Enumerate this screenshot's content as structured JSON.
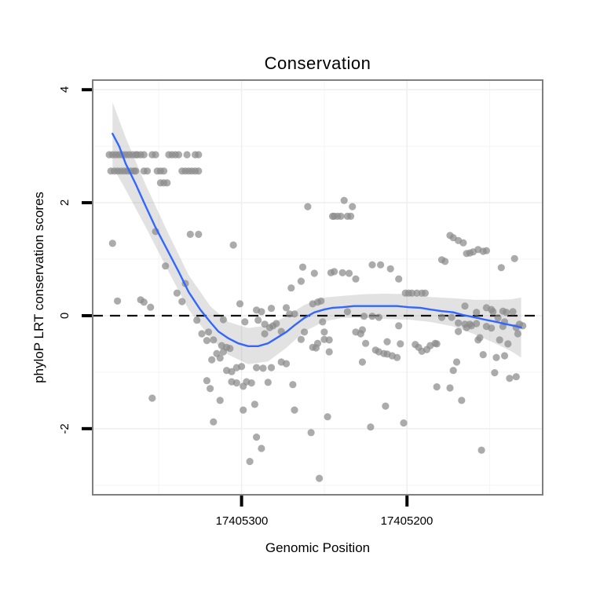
{
  "styles": {
    "point_color": "#8a8a8a",
    "point_opacity": 0.72,
    "smooth_color": "#3366FF",
    "band_color": "#9e9e9e",
    "band_opacity": 0.3,
    "ref_line_color": "#111111",
    "grid_major_color": "#eeeeee",
    "grid_minor_color": "#f6f6f6",
    "panel_border_color": "#7f7f7f",
    "tick_color": "#000000"
  },
  "chart_data": {
    "type": "scatter",
    "title": "Conservation",
    "xlabel": "Genomic Position",
    "ylabel": "phyloP LRT conservation scores",
    "x_reversed": true,
    "xlim": [
      17405390,
      17405118
    ],
    "ylim": [
      -3.17,
      4.17
    ],
    "grid": true,
    "legend_position": "none",
    "reference_line_y": 0,
    "x_ticks": [
      {
        "value": 17405300,
        "label": "17405300"
      },
      {
        "value": 17405200,
        "label": "17405200"
      }
    ],
    "x_minor_ticks": [
      17405350,
      17405250,
      17405150
    ],
    "y_ticks": [
      {
        "value": 4,
        "label": "4"
      },
      {
        "value": 2,
        "label": "2"
      },
      {
        "value": 0,
        "label": "0"
      },
      {
        "value": -2,
        "label": "-2"
      }
    ],
    "y_minor_ticks": [
      3,
      1,
      -1,
      -3
    ],
    "points": [
      [
        17405380,
        2.85
      ],
      [
        17405378,
        2.85
      ],
      [
        17405376,
        2.85
      ],
      [
        17405374,
        2.85
      ],
      [
        17405372,
        2.85
      ],
      [
        17405370,
        2.85
      ],
      [
        17405368,
        2.85
      ],
      [
        17405366,
        2.85
      ],
      [
        17405364,
        2.85
      ],
      [
        17405363,
        2.85
      ],
      [
        17405361,
        2.85
      ],
      [
        17405359,
        2.85
      ],
      [
        17405354,
        2.85
      ],
      [
        17405352,
        2.85
      ],
      [
        17405344,
        2.85
      ],
      [
        17405342,
        2.85
      ],
      [
        17405340,
        2.85
      ],
      [
        17405338,
        2.85
      ],
      [
        17405333,
        2.85
      ],
      [
        17405328,
        2.85
      ],
      [
        17405326,
        2.85
      ],
      [
        17405379,
        2.56
      ],
      [
        17405377,
        2.56
      ],
      [
        17405375,
        2.56
      ],
      [
        17405373,
        2.56
      ],
      [
        17405371,
        2.56
      ],
      [
        17405369,
        2.56
      ],
      [
        17405367,
        2.56
      ],
      [
        17405365,
        2.56
      ],
      [
        17405364,
        2.56
      ],
      [
        17405359,
        2.56
      ],
      [
        17405357,
        2.56
      ],
      [
        17405351,
        2.56
      ],
      [
        17405349,
        2.56
      ],
      [
        17405347,
        2.56
      ],
      [
        17405336,
        2.56
      ],
      [
        17405334,
        2.56
      ],
      [
        17405332,
        2.56
      ],
      [
        17405330,
        2.56
      ],
      [
        17405328,
        2.56
      ],
      [
        17405326,
        2.56
      ],
      [
        17405349,
        2.35
      ],
      [
        17405347,
        2.35
      ],
      [
        17405345,
        2.35
      ],
      [
        17405378,
        1.28
      ],
      [
        17405352,
        1.49
      ],
      [
        17405331,
        1.44
      ],
      [
        17405326,
        1.44
      ],
      [
        17405305,
        1.25
      ],
      [
        17405346,
        0.88
      ],
      [
        17405334,
        0.57
      ],
      [
        17405339,
        0.4
      ],
      [
        17405336,
        0.25
      ],
      [
        17405375,
        0.26
      ],
      [
        17405361,
        0.28
      ],
      [
        17405359,
        0.24
      ],
      [
        17405355,
        0.15
      ],
      [
        17405260,
        1.93
      ],
      [
        17405238,
        2.04
      ],
      [
        17405233,
        1.93
      ],
      [
        17405245,
        1.76
      ],
      [
        17405244,
        1.76
      ],
      [
        17405242,
        1.76
      ],
      [
        17405240,
        1.76
      ],
      [
        17405236,
        1.76
      ],
      [
        17405234,
        1.76
      ],
      [
        17405263,
        0.86
      ],
      [
        17405256,
        0.75
      ],
      [
        17405264,
        0.61
      ],
      [
        17405270,
        0.49
      ],
      [
        17405246,
        0.76
      ],
      [
        17405244,
        0.78
      ],
      [
        17405239,
        0.76
      ],
      [
        17405235,
        0.75
      ],
      [
        17405231,
        0.65
      ],
      [
        17405221,
        0.9
      ],
      [
        17405216,
        0.9
      ],
      [
        17405210,
        0.83
      ],
      [
        17405205,
        0.65
      ],
      [
        17405179,
        0.99
      ],
      [
        17405177,
        0.96
      ],
      [
        17405201,
        0.4
      ],
      [
        17405199,
        0.4
      ],
      [
        17405197,
        0.4
      ],
      [
        17405194,
        0.4
      ],
      [
        17405191,
        0.4
      ],
      [
        17405189,
        0.4
      ],
      [
        17405174,
        1.42
      ],
      [
        17405172,
        1.38
      ],
      [
        17405169,
        1.33
      ],
      [
        17405166,
        1.29
      ],
      [
        17405164,
        1.1
      ],
      [
        17405162,
        1.11
      ],
      [
        17405160,
        1.13
      ],
      [
        17405157,
        1.17
      ],
      [
        17405154,
        1.14
      ],
      [
        17405152,
        1.15
      ],
      [
        17405135,
        1.01
      ],
      [
        17405143,
        0.85
      ],
      [
        17405165,
        0.17
      ],
      [
        17405327,
        -0.08
      ],
      [
        17405311,
        -0.07
      ],
      [
        17405301,
        0.21
      ],
      [
        17405298,
        -0.11
      ],
      [
        17405324,
        -0.32
      ],
      [
        17405320,
        -0.29
      ],
      [
        17405321,
        -0.44
      ],
      [
        17405317,
        -0.43
      ],
      [
        17405312,
        -0.53
      ],
      [
        17405309,
        -0.56
      ],
      [
        17405307,
        -0.58
      ],
      [
        17405315,
        -0.67
      ],
      [
        17405311,
        -0.64
      ],
      [
        17405318,
        -0.78
      ],
      [
        17405313,
        -0.75
      ],
      [
        17405309,
        -0.97
      ],
      [
        17405306,
        -0.99
      ],
      [
        17405303,
        -0.92
      ],
      [
        17405300,
        -0.9
      ],
      [
        17405321,
        -1.15
      ],
      [
        17405319,
        -1.29
      ],
      [
        17405313,
        -1.5
      ],
      [
        17405306,
        -1.17
      ],
      [
        17405303,
        -1.19
      ],
      [
        17405299,
        -1.25
      ],
      [
        17405297,
        -1.17
      ],
      [
        17405294,
        -1.19
      ],
      [
        17405299,
        -1.67
      ],
      [
        17405292,
        -1.57
      ],
      [
        17405317,
        -1.88
      ],
      [
        17405354,
        -1.46
      ],
      [
        17405295,
        -2.58
      ],
      [
        17405291,
        -2.15
      ],
      [
        17405288,
        -2.35
      ],
      [
        17405291,
        0.1
      ],
      [
        17405288,
        0.07
      ],
      [
        17405290,
        -0.08
      ],
      [
        17405286,
        -0.15
      ],
      [
        17405283,
        -0.21
      ],
      [
        17405281,
        -0.18
      ],
      [
        17405279,
        -0.14
      ],
      [
        17405282,
        0.13
      ],
      [
        17405273,
        0.14
      ],
      [
        17405286,
        -0.32
      ],
      [
        17405276,
        -0.28
      ],
      [
        17405271,
        0.03
      ],
      [
        17405268,
        0.03
      ],
      [
        17405264,
        -0.42
      ],
      [
        17405262,
        -0.29
      ],
      [
        17405257,
        -0.56
      ],
      [
        17405255,
        -0.57
      ],
      [
        17405254,
        -0.49
      ],
      [
        17405251,
        -0.11
      ],
      [
        17405250,
        -0.29
      ],
      [
        17405250,
        -0.42
      ],
      [
        17405247,
        -0.43
      ],
      [
        17405247,
        -0.64
      ],
      [
        17405257,
        0.21
      ],
      [
        17405254,
        0.24
      ],
      [
        17405252,
        0.26
      ],
      [
        17405291,
        -0.92
      ],
      [
        17405287,
        -0.93
      ],
      [
        17405282,
        -0.92
      ],
      [
        17405284,
        -1.18
      ],
      [
        17405276,
        -0.82
      ],
      [
        17405273,
        -0.85
      ],
      [
        17405269,
        -1.22
      ],
      [
        17405268,
        -1.67
      ],
      [
        17405258,
        -2.07
      ],
      [
        17405253,
        -2.88
      ],
      [
        17405248,
        -1.79
      ],
      [
        17405236,
        0.07
      ],
      [
        17405226,
        -0.01
      ],
      [
        17405221,
        -0.01
      ],
      [
        17405217,
        -0.03
      ],
      [
        17405231,
        -0.29
      ],
      [
        17405228,
        -0.32
      ],
      [
        17405227,
        -0.25
      ],
      [
        17405225,
        -0.49
      ],
      [
        17405219,
        -0.61
      ],
      [
        17405217,
        -0.64
      ],
      [
        17405214,
        -0.67
      ],
      [
        17405212,
        -0.68
      ],
      [
        17405209,
        -0.71
      ],
      [
        17405206,
        -0.74
      ],
      [
        17405227,
        -0.82
      ],
      [
        17405212,
        -0.46
      ],
      [
        17405205,
        -0.18
      ],
      [
        17405204,
        -0.5
      ],
      [
        17405213,
        -1.6
      ],
      [
        17405202,
        -1.9
      ],
      [
        17405222,
        -1.97
      ],
      [
        17405195,
        -0.51
      ],
      [
        17405193,
        -0.56
      ],
      [
        17405191,
        -0.63
      ],
      [
        17405188,
        -0.6
      ],
      [
        17405186,
        -0.53
      ],
      [
        17405183,
        -0.49
      ],
      [
        17405182,
        -0.5
      ],
      [
        17405179,
        -0.03
      ],
      [
        17405173,
        -0.03
      ],
      [
        17405169,
        -0.13
      ],
      [
        17405165,
        -0.15
      ],
      [
        17405161,
        -0.18
      ],
      [
        17405169,
        -0.28
      ],
      [
        17405164,
        -0.21
      ],
      [
        17405158,
        -0.14
      ],
      [
        17405158,
        0.06
      ],
      [
        17405162,
        -0.15
      ],
      [
        17405156,
        -0.39
      ],
      [
        17405152,
        0.14
      ],
      [
        17405149,
        0.11
      ],
      [
        17405148,
        0.07
      ],
      [
        17405145,
        -0.04
      ],
      [
        17405142,
        0.08
      ],
      [
        17405140,
        0.06
      ],
      [
        17405136,
        0.07
      ],
      [
        17405152,
        -0.19
      ],
      [
        17405149,
        -0.22
      ],
      [
        17405142,
        -0.19
      ],
      [
        17405141,
        -0.11
      ],
      [
        17405134,
        -0.21
      ],
      [
        17405132,
        -0.15
      ],
      [
        17405130,
        -0.18
      ],
      [
        17405133,
        -0.32
      ],
      [
        17405157,
        -0.43
      ],
      [
        17405144,
        -0.43
      ],
      [
        17405139,
        -0.5
      ],
      [
        17405170,
        -0.82
      ],
      [
        17405172,
        -0.97
      ],
      [
        17405154,
        -0.69
      ],
      [
        17405146,
        -0.74
      ],
      [
        17405141,
        -0.71
      ],
      [
        17405147,
        -1.01
      ],
      [
        17405138,
        -1.11
      ],
      [
        17405134,
        -1.08
      ],
      [
        17405182,
        -1.26
      ],
      [
        17405174,
        -1.28
      ],
      [
        17405167,
        -1.5
      ],
      [
        17405155,
        -2.38
      ]
    ],
    "smooth_line": [
      [
        17405378,
        3.22
      ],
      [
        17405374,
        3.0
      ],
      [
        17405370,
        2.69
      ],
      [
        17405364,
        2.33
      ],
      [
        17405358,
        1.94
      ],
      [
        17405352,
        1.56
      ],
      [
        17405345,
        1.17
      ],
      [
        17405338,
        0.78
      ],
      [
        17405332,
        0.42
      ],
      [
        17405325,
        0.11
      ],
      [
        17405319,
        -0.11
      ],
      [
        17405314,
        -0.28
      ],
      [
        17405308,
        -0.4
      ],
      [
        17405302,
        -0.49
      ],
      [
        17405296,
        -0.54
      ],
      [
        17405290,
        -0.54
      ],
      [
        17405284,
        -0.49
      ],
      [
        17405279,
        -0.4
      ],
      [
        17405273,
        -0.29
      ],
      [
        17405268,
        -0.17
      ],
      [
        17405262,
        -0.04
      ],
      [
        17405256,
        0.06
      ],
      [
        17405250,
        0.11
      ],
      [
        17405245,
        0.14
      ],
      [
        17405239,
        0.15
      ],
      [
        17405232,
        0.17
      ],
      [
        17405226,
        0.17
      ],
      [
        17405219,
        0.17
      ],
      [
        17405213,
        0.17
      ],
      [
        17405206,
        0.17
      ],
      [
        17405199,
        0.15
      ],
      [
        17405192,
        0.14
      ],
      [
        17405186,
        0.11
      ],
      [
        17405179,
        0.08
      ],
      [
        17405172,
        0.06
      ],
      [
        17405166,
        0.01
      ],
      [
        17405159,
        -0.03
      ],
      [
        17405153,
        -0.07
      ],
      [
        17405146,
        -0.11
      ],
      [
        17405140,
        -0.15
      ],
      [
        17405135,
        -0.18
      ],
      [
        17405131,
        -0.21
      ]
    ],
    "confidence_band": [
      [
        17405378,
        3.78,
        2.64
      ],
      [
        17405370,
        3.15,
        2.23
      ],
      [
        17405358,
        2.32,
        1.57
      ],
      [
        17405345,
        1.5,
        0.83
      ],
      [
        17405332,
        0.72,
        0.11
      ],
      [
        17405319,
        0.17,
        -0.39
      ],
      [
        17405308,
        -0.11,
        -0.69
      ],
      [
        17405296,
        -0.22,
        -0.86
      ],
      [
        17405284,
        -0.17,
        -0.81
      ],
      [
        17405273,
        -0.01,
        -0.57
      ],
      [
        17405262,
        0.19,
        -0.28
      ],
      [
        17405250,
        0.32,
        -0.1
      ],
      [
        17405239,
        0.35,
        -0.04
      ],
      [
        17405226,
        0.38,
        -0.04
      ],
      [
        17405213,
        0.39,
        -0.06
      ],
      [
        17405199,
        0.38,
        -0.07
      ],
      [
        17405186,
        0.33,
        -0.11
      ],
      [
        17405172,
        0.31,
        -0.19
      ],
      [
        17405159,
        0.28,
        -0.33
      ],
      [
        17405146,
        0.28,
        -0.5
      ],
      [
        17405137,
        0.29,
        -0.63
      ],
      [
        17405131,
        0.32,
        -0.74
      ]
    ]
  }
}
